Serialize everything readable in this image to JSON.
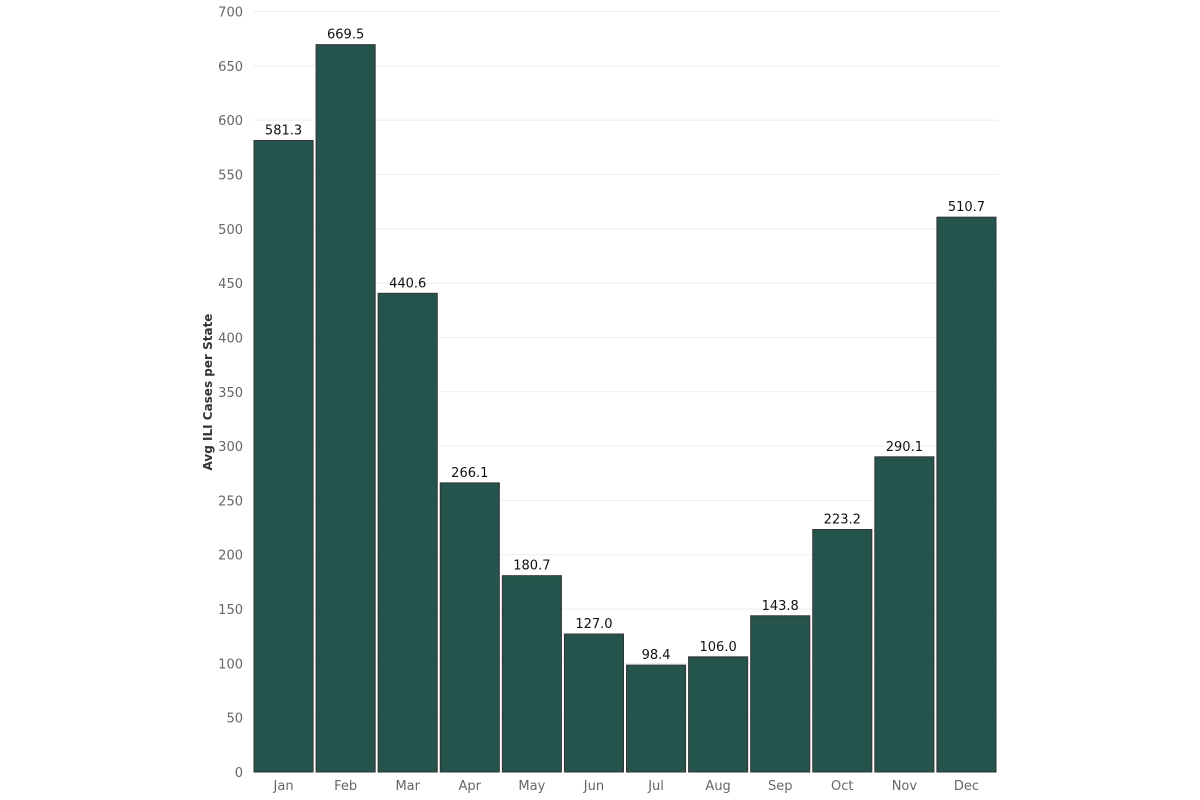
{
  "chart_data": {
    "type": "bar",
    "title": "",
    "xlabel": "",
    "ylabel": "Avg ILI Cases per State",
    "categories": [
      "Jan",
      "Feb",
      "Mar",
      "Apr",
      "May",
      "Jun",
      "Jul",
      "Aug",
      "Sep",
      "Oct",
      "Nov",
      "Dec"
    ],
    "values": [
      581.3,
      669.5,
      440.6,
      266.1,
      180.7,
      127.0,
      98.4,
      106.0,
      143.8,
      223.2,
      290.1,
      510.7
    ],
    "data_labels": [
      "581.3",
      "669.5",
      "440.6",
      "266.1",
      "180.7",
      "127.0",
      "98.4",
      "106.0",
      "143.8",
      "223.2",
      "290.1",
      "510.7"
    ],
    "ylim": [
      0,
      700
    ],
    "yticks": [
      0,
      50,
      100,
      150,
      200,
      250,
      300,
      350,
      400,
      450,
      500,
      550,
      600,
      650,
      700
    ],
    "grid": true,
    "bar_color": "#24544c",
    "bar_edge_color": "#333333",
    "grid_color": "#eeeeee"
  }
}
